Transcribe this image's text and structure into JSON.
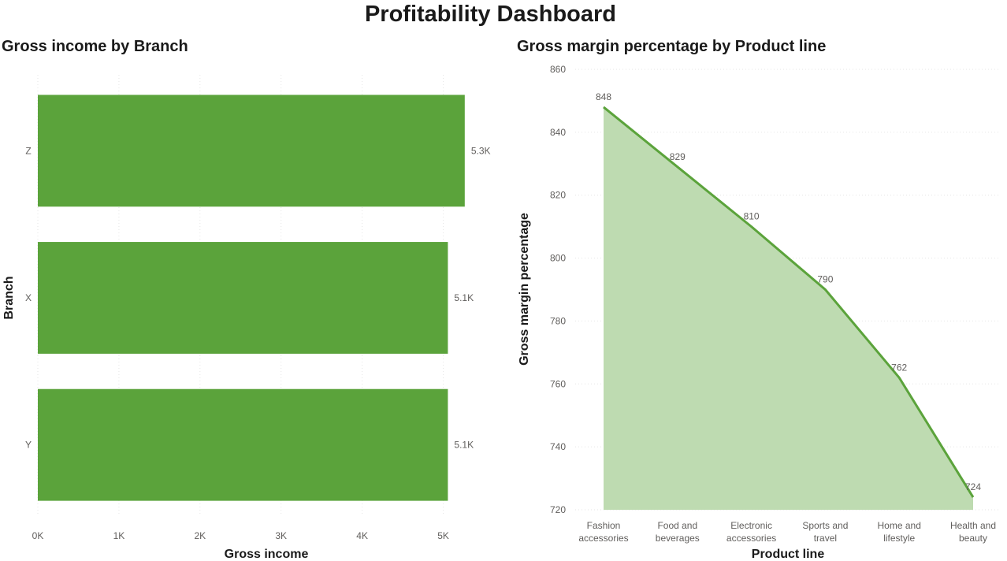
{
  "page_title": "Profitability Dashboard",
  "chart_data": [
    {
      "type": "bar",
      "orientation": "horizontal",
      "title": "Gross income by Branch",
      "xlabel": "Gross income",
      "ylabel": "Branch",
      "categories": [
        "Z",
        "X",
        "Y"
      ],
      "values": [
        5265,
        5057,
        5057
      ],
      "data_labels": [
        "5.3K",
        "5.1K",
        "5.1K"
      ],
      "xlim": [
        0,
        5500
      ],
      "xticks": [
        0,
        1000,
        2000,
        3000,
        4000,
        5000
      ],
      "xtick_labels": [
        "0K",
        "1K",
        "2K",
        "3K",
        "4K",
        "5K"
      ],
      "grid": true,
      "color": "#5BA33B"
    },
    {
      "type": "area",
      "title": "Gross margin percentage by Product line",
      "xlabel": "Product line",
      "ylabel": "Gross margin percentage",
      "categories": [
        [
          "Fashion",
          "accessories"
        ],
        [
          "Food and",
          "beverages"
        ],
        [
          "Electronic",
          "accessories"
        ],
        [
          "Sports and",
          "travel"
        ],
        [
          "Home and",
          "lifestyle"
        ],
        [
          "Health and",
          "beauty"
        ]
      ],
      "values": [
        848,
        829,
        810,
        790,
        762,
        724
      ],
      "data_labels": [
        "848",
        "829",
        "810",
        "790",
        "762",
        "724"
      ],
      "ylim": [
        720,
        860
      ],
      "yticks": [
        720,
        740,
        760,
        780,
        800,
        820,
        840,
        860
      ],
      "grid": true,
      "line_color": "#5BA33B",
      "fill_color": "#BEDBB1"
    }
  ]
}
